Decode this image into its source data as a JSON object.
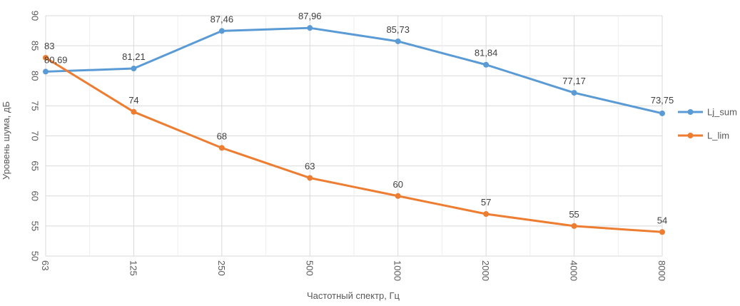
{
  "chart_data": {
    "type": "line",
    "categories": [
      "63",
      "125",
      "250",
      "500",
      "1000",
      "2000",
      "4000",
      "8000"
    ],
    "series": [
      {
        "name": "Lj_sum",
        "color": "#5B9BD5",
        "values": [
          80.69,
          81.21,
          87.46,
          87.96,
          85.73,
          81.84,
          77.17,
          73.75
        ],
        "labels": [
          "80,69",
          "81,21",
          "87,46",
          "87,96",
          "85,73",
          "81,84",
          "77,17",
          "73,75"
        ]
      },
      {
        "name": "L_lim",
        "color": "#ED7D31",
        "values": [
          83,
          74,
          68,
          63,
          60,
          57,
          55,
          54
        ],
        "labels": [
          "83",
          "74",
          "68",
          "63",
          "60",
          "57",
          "55",
          "54"
        ]
      }
    ],
    "title": "",
    "xlabel": "Частотный спектр, Гц",
    "ylabel": "Уровень шума, дБ",
    "ylim": [
      50,
      90
    ],
    "yticks": [
      "50",
      "55",
      "60",
      "65",
      "70",
      "75",
      "80",
      "85",
      "90"
    ],
    "grid": true,
    "legend_position": "right"
  }
}
